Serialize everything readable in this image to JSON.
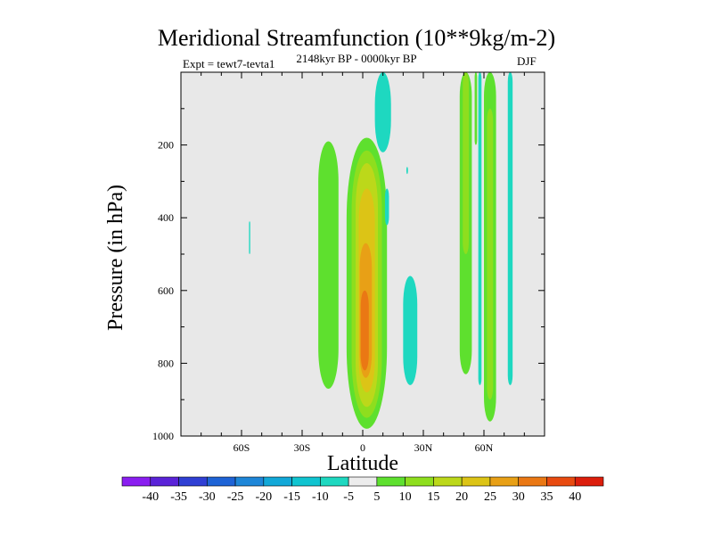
{
  "chart_data": {
    "type": "heatmap",
    "title": "Meridional Streamfunction (10**9kg/m-2)",
    "subtitle_center": "2148kyr BP - 0000kyr BP",
    "subtitle_left": "Expt = tewt7-tevta1",
    "subtitle_right": "DJF",
    "xlabel": "Latitude",
    "ylabel": "Pressure (in hPa)",
    "xlim": [
      -90,
      90
    ],
    "ylim": [
      1000,
      0
    ],
    "x_ticks": [
      {
        "value": -60,
        "label": "60S"
      },
      {
        "value": -30,
        "label": "30S"
      },
      {
        "value": 0,
        "label": "0"
      },
      {
        "value": 30,
        "label": "30N"
      },
      {
        "value": 60,
        "label": "60N"
      }
    ],
    "y_ticks": [
      {
        "value": 200,
        "label": "200"
      },
      {
        "value": 400,
        "label": "400"
      },
      {
        "value": 600,
        "label": "600"
      },
      {
        "value": 800,
        "label": "800"
      },
      {
        "value": 1000,
        "label": "1000"
      }
    ],
    "background_color": "#e8e8e8",
    "colorbar": {
      "levels": [
        "-40",
        "-35",
        "-30",
        "-25",
        "-20",
        "-15",
        "-10",
        "-5",
        "5",
        "10",
        "15",
        "20",
        "25",
        "30",
        "35",
        "40"
      ],
      "colors": [
        "#8a1ef0",
        "#5a22d8",
        "#2f3fd4",
        "#1e63d6",
        "#1e86d8",
        "#12a8d8",
        "#10c4d0",
        "#1ed8c0",
        "#ececec",
        "#5ee02e",
        "#8ede1e",
        "#bcd81a",
        "#dcc416",
        "#e8a016",
        "#ea7814",
        "#e84a10",
        "#dc1e0c"
      ]
    },
    "features": [
      {
        "level": 5,
        "color": "#5ee02e",
        "lat_center": -17,
        "lat_halfwidth": 5,
        "p_top": 190,
        "p_bottom": 870
      },
      {
        "level": 5,
        "color": "#5ee02e",
        "lat_center": 2,
        "lat_halfwidth": 10,
        "p_top": 180,
        "p_bottom": 980
      },
      {
        "level": 10,
        "color": "#8ede1e",
        "lat_center": 2,
        "lat_halfwidth": 7.5,
        "p_top": 215,
        "p_bottom": 950
      },
      {
        "level": 15,
        "color": "#bcd81a",
        "lat_center": 2,
        "lat_halfwidth": 5.5,
        "p_top": 250,
        "p_bottom": 920
      },
      {
        "level": 20,
        "color": "#dcc416",
        "lat_center": 2,
        "lat_halfwidth": 4,
        "p_top": 320,
        "p_bottom": 880
      },
      {
        "level": 25,
        "color": "#e8a016",
        "lat_center": 1.5,
        "lat_halfwidth": 3,
        "p_top": 470,
        "p_bottom": 840
      },
      {
        "level": 30,
        "color": "#ea7814",
        "lat_center": 1,
        "lat_halfwidth": 2,
        "p_top": 600,
        "p_bottom": 820
      },
      {
        "level": -5,
        "color": "#1ed8c0",
        "lat_center": 10,
        "lat_halfwidth": 4,
        "p_top": 0,
        "p_bottom": 220
      },
      {
        "level": -5,
        "color": "#1ed8c0",
        "lat_center": 23.5,
        "lat_halfwidth": 3.5,
        "p_top": 560,
        "p_bottom": 860
      },
      {
        "level": 5,
        "color": "#5ee02e",
        "lat_center": 51,
        "lat_halfwidth": 3,
        "p_top": 0,
        "p_bottom": 830
      },
      {
        "level": 10,
        "color": "#8ede1e",
        "lat_center": 51,
        "lat_halfwidth": 1.5,
        "p_top": 0,
        "p_bottom": 500
      },
      {
        "level": 5,
        "color": "#5ee02e",
        "lat_center": 56,
        "lat_halfwidth": 0.6,
        "p_top": 0,
        "p_bottom": 200
      },
      {
        "level": -5,
        "color": "#1ed8c0",
        "lat_center": 58,
        "lat_halfwidth": 0.8,
        "p_top": 0,
        "p_bottom": 860
      },
      {
        "level": 5,
        "color": "#5ee02e",
        "lat_center": 63,
        "lat_halfwidth": 3,
        "p_top": 0,
        "p_bottom": 960
      },
      {
        "level": 10,
        "color": "#8ede1e",
        "lat_center": 63,
        "lat_halfwidth": 1.5,
        "p_top": 100,
        "p_bottom": 900
      },
      {
        "level": -5,
        "color": "#1ed8c0",
        "lat_center": 73,
        "lat_halfwidth": 1.2,
        "p_top": 0,
        "p_bottom": 860
      },
      {
        "level": -5,
        "color": "#1ed8c0",
        "lat_center": -56,
        "lat_halfwidth": 0.3,
        "p_top": 410,
        "p_bottom": 500
      },
      {
        "level": -5,
        "color": "#1ed8c0",
        "lat_center": 22,
        "lat_halfwidth": 0.4,
        "p_top": 260,
        "p_bottom": 280
      },
      {
        "level": -5,
        "color": "#1ed8c0",
        "lat_center": 12,
        "lat_halfwidth": 1,
        "p_top": 320,
        "p_bottom": 420
      }
    ]
  }
}
